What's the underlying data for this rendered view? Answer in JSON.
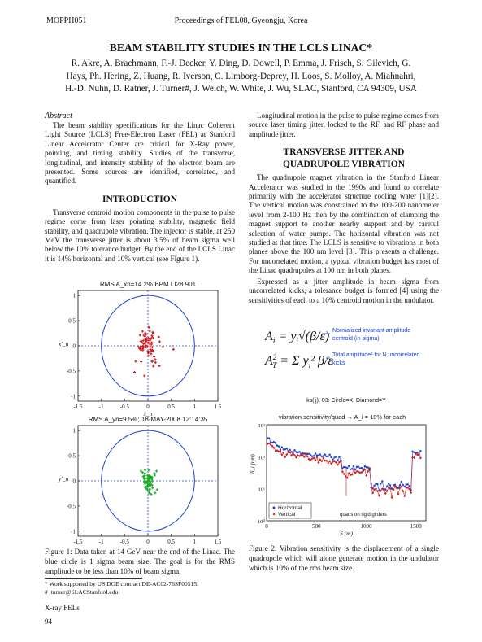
{
  "header": {
    "left": "MOPPH051",
    "center": "Proceedings of FEL08, Gyeongju, Korea"
  },
  "title": "BEAM STABILITY STUDIES IN THE LCLS LINAC*",
  "authors": [
    "R. Akre, A. Brachmann, F.-J. Decker, Y. Ding, D. Dowell, P. Emma, J. Frisch, S. Gilevich, G.",
    "Hays, Ph. Hering, Z. Huang, R. Iverson, C. Limborg-Deprey, H. Loos, S. Molloy, A. Miahnahri,",
    "H.-D. Nuhn, D. Ratner, J. Turner#, J. Welch, W. White, J. Wu, SLAC, Stanford, CA 94309, USA"
  ],
  "abstract": {
    "heading": "Abstract",
    "text": "The beam stability specifications for the Linac Coherent Light Source (LCLS) Free-Electron Laser (FEL) at Stanford Linear Accelerator Center are critical for X-Ray power, pointing, and timing stability. Studies of the transverse, longitudinal, and intensity stability of the electron beam are presented. Some sources are identified, correlated, and quantified."
  },
  "intro": {
    "heading": "INTRODUCTION",
    "text": "Transverse centroid motion components in the pulse to pulse regime come from laser pointing stability, magnetic field stability, and quadrupole vibration. The injector is stable, at 250 MeV the transverse jitter is about 3.5% of beam sigma well below the 10% tolerance budget. By the end of the LCLS Linac it is 14% horizontal and 10% vertical (see Figure 1)."
  },
  "right_intro": "Longitudinal motion in the pulse to pulse regime comes from source laser timing jitter, locked to the RF, and RF phase and amplitude jitter.",
  "section2": {
    "heading_line1": "TRANSVERSE JITTER AND",
    "heading_line2": "QUADRUPOLE VIBRATION",
    "para1": "The quadrupole magnet vibration in the Stanford Linear Accelerator was studied in the 1990s and found to correlate primarily with the accelerator structure cooling water [1][2]. The vertical motion was constrained to the 100-200 nanometer level from 2-100 Hz then by the combination of clamping the magnet support to another nearby support and by careful selection of water pumps. The horizontal vibration was not studied at that time. The LCLS is sensitive to vibrations in both planes above the 100 nm level [3]. This presents a challenge. For uncorrelated motion, a typical vibration budget has most of the Linac quadrupoles at 100 nm in both planes.",
    "para2": "Expressed as a jitter amplitude in beam sigma from uncorrelated kicks, a tolerance budget is formed [4] using the sensitivities of each to a 10% centroid motion in the undulator."
  },
  "equations": {
    "eq1_note1": "Normalized invariant amplitude",
    "eq1_note2": "centroid (in sigma)",
    "eq2_note1": "Total amplitude² for N uncorrelated",
    "eq2_note2": "kicks"
  },
  "fig1": {
    "top_title": "RMS A_xn=14.2%  BPM LI28 901",
    "bottom_title": "RMS A_yn=9.5%; 18-MAY-2008 12:14:35",
    "x_ticks": [
      "-1.5",
      "-1",
      "-0.5",
      "0",
      "0.5",
      "1",
      "1.5"
    ],
    "y_ticks": [
      "1",
      "0.5",
      "0",
      "-0.5",
      "-1"
    ],
    "top_xlabel": "x_n",
    "top_ylabel": "x'_n",
    "bottom_xlabel": "y_n",
    "bottom_ylabel": "y'_n",
    "caption": "Figure 1: Data taken at 14 GeV near the end of the Linac. The blue circle is 1 sigma beam size. The goal is for the RMS amplitude to be less than 10% of beam sigma."
  },
  "fig2": {
    "top_label": "ks(ij), 03: Circle=X, Diamond=Y",
    "title": "vibration sensitivity/quad → A_i = 10% for each",
    "ylabel": "δ_i (nm)",
    "xlabel": "S (m)",
    "y_ticks": [
      "10³",
      "10²",
      "10¹",
      "10⁰"
    ],
    "x_ticks": [
      "0",
      "500",
      "1000",
      "1500"
    ],
    "legend_h": "Horizontal",
    "legend_v": "Vertical",
    "annotation": "quads on rigid girders",
    "caption": "Figure 2: Vibration sensitivity is the displacement of a single quadrupole which will alone generate motion in the undulator which is 10% of the rms beam size."
  },
  "footnotes": {
    "f1": "* Work supported by US DOE contract DE-AC02-76SF00515.",
    "f2": "# jturner@SLACStanford.edu"
  },
  "footer": {
    "left": "X-ray FELs",
    "page": "94"
  },
  "colors": {
    "blue": "#1a3fd6",
    "red": "#d11a1a",
    "green": "#1faa2a"
  }
}
